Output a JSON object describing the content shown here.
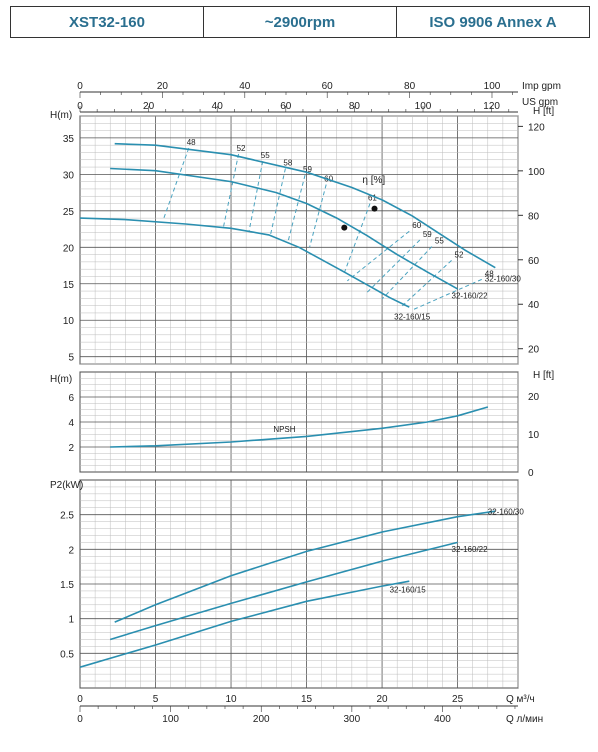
{
  "header": {
    "model": "XST32-160",
    "speed": "~2900rpm",
    "standard": "ISO 9906   Annex A"
  },
  "colors": {
    "curve": "#2a8fb0",
    "dashed": "#4aa3c0",
    "grid_major": "#555555",
    "grid_minor": "#bdbdbd",
    "header_text": "#2a6f8f"
  },
  "chart_data": [
    {
      "type": "line",
      "panel": "head",
      "title": "",
      "ylabel": "H(m)",
      "ylabel_right": "H [ft]",
      "ylim": [
        4,
        38
      ],
      "xlim": [
        0,
        29
      ],
      "yticks": [
        5,
        10,
        15,
        20,
        25,
        30,
        35
      ],
      "yticks_right": [
        20,
        40,
        60,
        80,
        100,
        120
      ],
      "top_axis_imp_label": "Imp gpm",
      "top_axis_imp_ticks": [
        0,
        20,
        40,
        60,
        80,
        100
      ],
      "top_axis_us_label": "US gpm",
      "top_axis_us_ticks": [
        0,
        20,
        40,
        60,
        80,
        100,
        120
      ],
      "efficiency_label": "η [%]",
      "series": [
        {
          "name": "32-160/30",
          "x": [
            2.3,
            5,
            10,
            15,
            18,
            20,
            22,
            24,
            25.5,
            27.5
          ],
          "values": [
            34.2,
            34.0,
            32.7,
            30.3,
            28.2,
            26.5,
            24.3,
            21.6,
            19.6,
            17.2
          ]
        },
        {
          "name": "32-160/22",
          "x": [
            2,
            5,
            10,
            13,
            15,
            17,
            19,
            21,
            23,
            25
          ],
          "values": [
            30.8,
            30.5,
            29.0,
            27.5,
            26.0,
            24.0,
            21.6,
            19.0,
            16.6,
            14.3
          ]
        },
        {
          "name": "32-160/15",
          "x": [
            0,
            3,
            7,
            10,
            12.5,
            14.5,
            16,
            17.5,
            19.5,
            20.5,
            21.8
          ],
          "values": [
            24.0,
            23.8,
            23.2,
            22.6,
            21.7,
            20.0,
            18.3,
            16.6,
            14.3,
            13.1,
            11.8
          ]
        }
      ],
      "efficiency_lines": [
        {
          "label": "48",
          "x": [
            7.2,
            5.5
          ],
          "y": [
            33.6,
            23.7
          ]
        },
        {
          "label": "52",
          "x": [
            10.5,
            9.5
          ],
          "y": [
            32.8,
            22.8
          ]
        },
        {
          "label": "55",
          "x": [
            12.1,
            11.2
          ],
          "y": [
            31.8,
            22.3
          ]
        },
        {
          "label": "58",
          "x": [
            13.6,
            12.6
          ],
          "y": [
            30.8,
            21.6
          ]
        },
        {
          "label": "59",
          "x": [
            14.9,
            13.8
          ],
          "y": [
            29.9,
            21.0
          ]
        },
        {
          "label": "60",
          "x": [
            16.3,
            15.2
          ],
          "y": [
            28.6,
            20.0
          ]
        },
        {
          "label": "61",
          "x": [
            19.2,
            17.5
          ],
          "y": [
            26.0,
            16.5
          ]
        },
        {
          "label": "60",
          "x": [
            21.8,
            17.7
          ],
          "y": [
            22.2,
            15.4
          ]
        },
        {
          "label": "59",
          "x": [
            22.5,
            19.0
          ],
          "y": [
            21.0,
            13.8
          ]
        },
        {
          "label": "55",
          "x": [
            23.3,
            20.0
          ],
          "y": [
            20.1,
            12.9
          ]
        },
        {
          "label": "52",
          "x": [
            24.6,
            21.3
          ],
          "y": [
            18.2,
            11.9
          ]
        },
        {
          "label": "48",
          "x": [
            26.6,
            22.0
          ],
          "y": [
            15.6,
            11.4
          ]
        }
      ],
      "best_efficiency_points": [
        {
          "x": 19.5,
          "y": 25.3
        },
        {
          "x": 17.5,
          "y": 22.7
        }
      ],
      "labels": [
        "32-160/30",
        "32-160/22",
        "32-160/15"
      ]
    },
    {
      "type": "line",
      "panel": "npsh",
      "ylabel": "H(m)",
      "ylabel_right": "H [ft]",
      "ylim": [
        0,
        8
      ],
      "yticks": [
        2,
        4,
        6
      ],
      "yticks_right": [
        0,
        10,
        20
      ],
      "series": [
        {
          "name": "NPSH",
          "x": [
            2,
            5,
            10,
            15,
            20,
            23,
            25,
            27
          ],
          "values": [
            2.0,
            2.1,
            2.4,
            2.85,
            3.5,
            4.0,
            4.5,
            5.2
          ]
        }
      ]
    },
    {
      "type": "line",
      "panel": "power",
      "ylabel": "P2(kW)",
      "ylim": [
        0,
        3
      ],
      "yticks": [
        0.5,
        1,
        1.5,
        2,
        2.5
      ],
      "xlabel": "Q  м³/ч",
      "xticks": [
        0,
        5,
        10,
        15,
        20,
        25
      ],
      "xlabel_secondary": "Q  л/мин",
      "xticks_secondary": [
        0,
        100,
        200,
        300,
        400
      ],
      "series": [
        {
          "name": "32-160/30",
          "x": [
            2.3,
            5,
            10,
            15,
            20,
            25,
            27.5
          ],
          "values": [
            0.95,
            1.2,
            1.62,
            1.97,
            2.25,
            2.47,
            2.55
          ]
        },
        {
          "name": "32-160/22",
          "x": [
            2,
            5,
            10,
            15,
            20,
            25
          ],
          "values": [
            0.7,
            0.9,
            1.22,
            1.53,
            1.83,
            2.1
          ]
        },
        {
          "name": "32-160/15",
          "x": [
            0,
            5,
            10,
            15,
            20,
            21.8
          ],
          "values": [
            0.3,
            0.62,
            0.96,
            1.25,
            1.47,
            1.54
          ]
        }
      ]
    }
  ]
}
